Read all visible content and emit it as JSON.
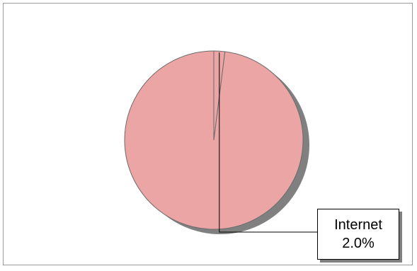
{
  "chart_data": {
    "type": "pie",
    "title": "",
    "slices": [
      {
        "label": "Internet",
        "value": 2.0,
        "value_label": "2.0%",
        "color": "#eca5a5"
      },
      {
        "label": "",
        "value": 98.0,
        "value_label": "",
        "color": "#eca5a5"
      }
    ],
    "legend": "none",
    "shadow_color": "#808080",
    "outline_color": "#6b6b6b"
  }
}
